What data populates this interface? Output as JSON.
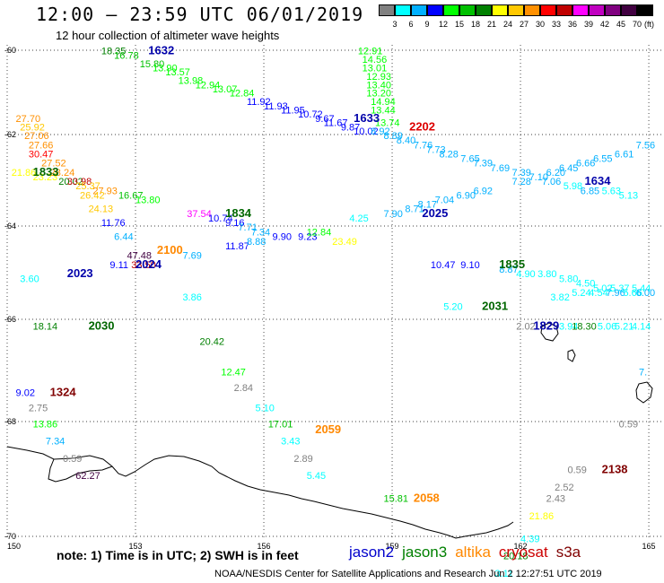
{
  "header": {
    "title": "12:00 — 23:59 UTC 06/01/2019",
    "subtitle": "12 hour collection of altimeter wave heights"
  },
  "colorbar": {
    "unit": "(ft)",
    "colors": [
      "#808080",
      "#00ffff",
      "#00b0ff",
      "#0000ff",
      "#00ff00",
      "#00c000",
      "#008000",
      "#ffff00",
      "#ffc800",
      "#ff9000",
      "#ff0000",
      "#c00000",
      "#ff00ff",
      "#c000c0",
      "#800080",
      "#400040",
      "#000000"
    ],
    "ticks": [
      "3",
      "6",
      "9",
      "12",
      "15",
      "18",
      "21",
      "24",
      "27",
      "30",
      "33",
      "36",
      "39",
      "42",
      "45",
      "70"
    ]
  },
  "axes": {
    "lat_labels": [
      "-60",
      "-62",
      "-64",
      "-66",
      "-68",
      "-70"
    ],
    "lon_labels": [
      "150",
      "153",
      "156",
      "159",
      "162",
      "165"
    ]
  },
  "note": "note: 1) Time is in UTC; 2) SWH is in feet",
  "legend": [
    {
      "name": "jason2",
      "color": "#0000cc"
    },
    {
      "name": "jason3",
      "color": "#008000"
    },
    {
      "name": "altika",
      "color": "#ff8800"
    },
    {
      "name": "cryosat",
      "color": "#cc0000"
    },
    {
      "name": "s3a",
      "color": "#800000"
    }
  ],
  "credit": "NOAA/NESDIS Center for Satellite Applications and Research   Jun  2 12:27:51 UTC 2019",
  "pass_times": [
    {
      "text": "1632",
      "lon": 153.3,
      "lat": -60.1,
      "color": "#0000aa"
    },
    {
      "text": "1633",
      "lon": 158.1,
      "lat": -61.7,
      "color": "#0000aa"
    },
    {
      "text": "2202",
      "lon": 159.4,
      "lat": -61.9,
      "color": "#dd0000"
    },
    {
      "text": "1833",
      "lon": 150.6,
      "lat": -62.9,
      "color": "#006600"
    },
    {
      "text": "1834",
      "lon": 155.1,
      "lat": -63.8,
      "color": "#006600"
    },
    {
      "text": "2025",
      "lon": 159.7,
      "lat": -63.8,
      "color": "#0000aa"
    },
    {
      "text": "1634",
      "lon": 163.5,
      "lat": -63.1,
      "color": "#0000aa"
    },
    {
      "text": "2100",
      "lon": 153.5,
      "lat": -64.6,
      "color": "#ff8800"
    },
    {
      "text": "2024",
      "lon": 153.0,
      "lat": -64.9,
      "color": "#0000aa"
    },
    {
      "text": "2023",
      "lon": 151.4,
      "lat": -65.1,
      "color": "#0000aa"
    },
    {
      "text": "1835",
      "lon": 161.5,
      "lat": -64.9,
      "color": "#006600"
    },
    {
      "text": "2031",
      "lon": 161.1,
      "lat": -65.8,
      "color": "#006600"
    },
    {
      "text": "2030",
      "lon": 151.9,
      "lat": -66.2,
      "color": "#006600"
    },
    {
      "text": "1829",
      "lon": 162.3,
      "lat": -66.2,
      "color": "#0000aa"
    },
    {
      "text": "1324",
      "lon": 151.0,
      "lat": -67.5,
      "color": "#800000"
    },
    {
      "text": "2059",
      "lon": 157.2,
      "lat": -68.2,
      "color": "#ff8800"
    },
    {
      "text": "2138",
      "lon": 163.9,
      "lat": -68.9,
      "color": "#800000"
    },
    {
      "text": "2058",
      "lon": 159.5,
      "lat": -69.4,
      "color": "#ff8800"
    }
  ],
  "observations": [
    {
      "v": "18.35",
      "lon": 152.2,
      "lat": -60.1
    },
    {
      "v": "16.78",
      "lon": 152.5,
      "lat": -60.2
    },
    {
      "v": "15.80",
      "lon": 153.1,
      "lat": -60.4
    },
    {
      "v": "13.90",
      "lon": 153.4,
      "lat": -60.5
    },
    {
      "v": "13.57",
      "lon": 153.7,
      "lat": -60.6
    },
    {
      "v": "13.98",
      "lon": 154.0,
      "lat": -60.8
    },
    {
      "v": "12.94",
      "lon": 154.4,
      "lat": -60.9
    },
    {
      "v": "13.07",
      "lon": 154.8,
      "lat": -61.0
    },
    {
      "v": "12.84",
      "lon": 155.2,
      "lat": -61.1
    },
    {
      "v": "11.92",
      "lon": 155.6,
      "lat": -61.3
    },
    {
      "v": "11.93",
      "lon": 156.0,
      "lat": -61.4
    },
    {
      "v": "11.95",
      "lon": 156.4,
      "lat": -61.5
    },
    {
      "v": "10.72",
      "lon": 156.8,
      "lat": -61.6
    },
    {
      "v": "9.67",
      "lon": 157.2,
      "lat": -61.7
    },
    {
      "v": "11.67",
      "lon": 157.4,
      "lat": -61.8
    },
    {
      "v": "9.87",
      "lon": 157.8,
      "lat": -61.9
    },
    {
      "v": "10.02",
      "lon": 158.1,
      "lat": -62.0
    },
    {
      "v": "12.91",
      "lon": 158.2,
      "lat": -60.1
    },
    {
      "v": "14.56",
      "lon": 158.3,
      "lat": -60.3
    },
    {
      "v": "13.01",
      "lon": 158.3,
      "lat": -60.5
    },
    {
      "v": "12.93",
      "lon": 158.4,
      "lat": -60.7
    },
    {
      "v": "13.40",
      "lon": 158.4,
      "lat": -60.9
    },
    {
      "v": "13.20",
      "lon": 158.4,
      "lat": -61.1
    },
    {
      "v": "14.94",
      "lon": 158.5,
      "lat": -61.3
    },
    {
      "v": "13.44",
      "lon": 158.5,
      "lat": -61.5
    },
    {
      "v": "13.74",
      "lon": 158.6,
      "lat": -61.8
    },
    {
      "v": "8.92",
      "lon": 158.5,
      "lat": -62.0
    },
    {
      "v": "8.89",
      "lon": 158.8,
      "lat": -62.1
    },
    {
      "v": "8.40",
      "lon": 159.1,
      "lat": -62.2
    },
    {
      "v": "7.76",
      "lon": 159.5,
      "lat": -62.3
    },
    {
      "v": "7.73",
      "lon": 159.8,
      "lat": -62.4
    },
    {
      "v": "8.28",
      "lon": 160.1,
      "lat": -62.5
    },
    {
      "v": "7.65",
      "lon": 160.6,
      "lat": -62.6
    },
    {
      "v": "7.39",
      "lon": 160.9,
      "lat": -62.7
    },
    {
      "v": "7.69",
      "lon": 161.3,
      "lat": -62.8
    },
    {
      "v": "7.39",
      "lon": 161.8,
      "lat": -62.9
    },
    {
      "v": "7.10",
      "lon": 162.2,
      "lat": -63.0
    },
    {
      "v": "6.20",
      "lon": 162.6,
      "lat": -62.9
    },
    {
      "v": "6.45",
      "lon": 162.9,
      "lat": -62.8
    },
    {
      "v": "6.66",
      "lon": 163.3,
      "lat": -62.7
    },
    {
      "v": "6.55",
      "lon": 163.7,
      "lat": -62.6
    },
    {
      "v": "6.61",
      "lon": 164.2,
      "lat": -62.5
    },
    {
      "v": "7.56",
      "lon": 164.7,
      "lat": -62.3
    },
    {
      "v": "7.28",
      "lon": 161.8,
      "lat": -63.1
    },
    {
      "v": "7.06",
      "lon": 162.5,
      "lat": -63.1
    },
    {
      "v": "5.98",
      "lon": 163.0,
      "lat": -63.2
    },
    {
      "v": "6.85",
      "lon": 163.4,
      "lat": -63.3
    },
    {
      "v": "5.63",
      "lon": 163.9,
      "lat": -63.3
    },
    {
      "v": "5.13",
      "lon": 164.3,
      "lat": -63.4
    },
    {
      "v": "6.92",
      "lon": 160.9,
      "lat": -63.3
    },
    {
      "v": "6.90",
      "lon": 160.5,
      "lat": -63.4
    },
    {
      "v": "7.04",
      "lon": 160.0,
      "lat": -63.5
    },
    {
      "v": "8.17",
      "lon": 159.6,
      "lat": -63.6
    },
    {
      "v": "8.71",
      "lon": 159.3,
      "lat": -63.7
    },
    {
      "v": "7.90",
      "lon": 158.8,
      "lat": -63.8
    },
    {
      "v": "4.25",
      "lon": 158.0,
      "lat": -63.9
    },
    {
      "v": "27.70",
      "lon": 150.2,
      "lat": -61.7
    },
    {
      "v": "25.92",
      "lon": 150.3,
      "lat": -61.9
    },
    {
      "v": "27.06",
      "lon": 150.4,
      "lat": -62.1
    },
    {
      "v": "27.66",
      "lon": 150.5,
      "lat": -62.3
    },
    {
      "v": "30.47",
      "lon": 150.5,
      "lat": -62.5
    },
    {
      "v": "27.52",
      "lon": 150.8,
      "lat": -62.7
    },
    {
      "v": "21.86",
      "lon": 150.1,
      "lat": -62.9
    },
    {
      "v": "28.24",
      "lon": 151.0,
      "lat": -62.9
    },
    {
      "v": "23.23",
      "lon": 150.6,
      "lat": -63.0
    },
    {
      "v": "20.02",
      "lon": 151.2,
      "lat": -63.1
    },
    {
      "v": "33.98",
      "lon": 151.4,
      "lat": -63.1
    },
    {
      "v": "25.37",
      "lon": 151.6,
      "lat": -63.2
    },
    {
      "v": "27.93",
      "lon": 152.0,
      "lat": -63.3
    },
    {
      "v": "16.67",
      "lon": 152.6,
      "lat": -63.4
    },
    {
      "v": "13.80",
      "lon": 153.0,
      "lat": -63.5
    },
    {
      "v": "26.42",
      "lon": 151.7,
      "lat": -63.4
    },
    {
      "v": "24.13",
      "lon": 151.9,
      "lat": -63.7
    },
    {
      "v": "11.76",
      "lon": 152.2,
      "lat": -64.0
    },
    {
      "v": "6.44",
      "lon": 152.5,
      "lat": -64.3
    },
    {
      "v": "37.54",
      "lon": 154.2,
      "lat": -63.8
    },
    {
      "v": "10.74",
      "lon": 154.7,
      "lat": -63.9
    },
    {
      "v": "9.16",
      "lon": 155.1,
      "lat": -64.0
    },
    {
      "v": "7.71",
      "lon": 155.4,
      "lat": -64.1
    },
    {
      "v": "7.34",
      "lon": 155.7,
      "lat": -64.2
    },
    {
      "v": "9.90",
      "lon": 156.2,
      "lat": -64.3
    },
    {
      "v": "9.23",
      "lon": 156.8,
      "lat": -64.3
    },
    {
      "v": "12.84",
      "lon": 157.0,
      "lat": -64.2
    },
    {
      "v": "23.49",
      "lon": 157.6,
      "lat": -64.4
    },
    {
      "v": "11.87",
      "lon": 155.1,
      "lat": -64.5
    },
    {
      "v": "8.88",
      "lon": 155.6,
      "lat": -64.4
    },
    {
      "v": "7.69",
      "lon": 154.1,
      "lat": -64.7
    },
    {
      "v": "47.48",
      "lon": 152.8,
      "lat": -64.7
    },
    {
      "v": "33.50",
      "lon": 152.9,
      "lat": -64.9
    },
    {
      "v": "9.11",
      "lon": 152.4,
      "lat": -64.9
    },
    {
      "v": "3.60",
      "lon": 150.3,
      "lat": -65.2
    },
    {
      "v": "3.86",
      "lon": 154.1,
      "lat": -65.6
    },
    {
      "v": "10.47",
      "lon": 159.9,
      "lat": -64.9
    },
    {
      "v": "9.10",
      "lon": 160.6,
      "lat": -64.9
    },
    {
      "v": "8.87",
      "lon": 161.5,
      "lat": -65.0
    },
    {
      "v": "4.90",
      "lon": 161.9,
      "lat": -65.1
    },
    {
      "v": "3.80",
      "lon": 162.4,
      "lat": -65.1
    },
    {
      "v": "5.80",
      "lon": 162.9,
      "lat": -65.2
    },
    {
      "v": "4.50",
      "lon": 163.3,
      "lat": -65.3
    },
    {
      "v": "5.02",
      "lon": 163.7,
      "lat": -65.4
    },
    {
      "v": "5.37",
      "lon": 164.1,
      "lat": -65.4
    },
    {
      "v": "5.44",
      "lon": 164.6,
      "lat": -65.4
    },
    {
      "v": "3.82",
      "lon": 162.7,
      "lat": -65.6
    },
    {
      "v": "5.24",
      "lon": 163.2,
      "lat": -65.5
    },
    {
      "v": "4.54",
      "lon": 163.6,
      "lat": -65.5
    },
    {
      "v": "7.96",
      "lon": 164.0,
      "lat": -65.5
    },
    {
      "v": "5.66",
      "lon": 164.4,
      "lat": -65.5
    },
    {
      "v": "6.00",
      "lon": 164.7,
      "lat": -65.5
    },
    {
      "v": "5.20",
      "lon": 160.2,
      "lat": -65.8
    },
    {
      "v": "2.02",
      "lon": 161.9,
      "lat": -66.2
    },
    {
      "v": "3.94",
      "lon": 162.9,
      "lat": -66.2
    },
    {
      "v": "18.30",
      "lon": 163.2,
      "lat": -66.2
    },
    {
      "v": "5.06",
      "lon": 163.8,
      "lat": -66.2
    },
    {
      "v": "5.21",
      "lon": 164.2,
      "lat": -66.2
    },
    {
      "v": "4.14",
      "lon": 164.6,
      "lat": -66.2
    },
    {
      "v": "7.",
      "lon": 164.85,
      "lat": -67.1
    },
    {
      "v": "18.14",
      "lon": 150.6,
      "lat": -66.2
    },
    {
      "v": "20.42",
      "lon": 154.5,
      "lat": -66.5
    },
    {
      "v": "12.47",
      "lon": 155.0,
      "lat": -67.1
    },
    {
      "v": "2.84",
      "lon": 155.3,
      "lat": -67.4
    },
    {
      "v": "5.10",
      "lon": 155.8,
      "lat": -67.8
    },
    {
      "v": "17.01",
      "lon": 156.1,
      "lat": -68.1
    },
    {
      "v": "3.43",
      "lon": 156.4,
      "lat": -68.4
    },
    {
      "v": "2.89",
      "lon": 156.7,
      "lat": -68.7
    },
    {
      "v": "5.45",
      "lon": 157.0,
      "lat": -69.0
    },
    {
      "v": "9.02",
      "lon": 150.2,
      "lat": -67.5
    },
    {
      "v": "2.75",
      "lon": 150.5,
      "lat": -67.8
    },
    {
      "v": "13.86",
      "lon": 150.6,
      "lat": -68.1
    },
    {
      "v": "7.34",
      "lon": 150.9,
      "lat": -68.4
    },
    {
      "v": "0.59",
      "lon": 151.3,
      "lat": -68.7
    },
    {
      "v": "62.27",
      "lon": 151.6,
      "lat": -69.0
    },
    {
      "v": "0.59",
      "lon": 164.3,
      "lat": -68.1
    },
    {
      "v": "0.59",
      "lon": 163.1,
      "lat": -68.9
    },
    {
      "v": "2.52",
      "lon": 162.8,
      "lat": -69.2
    },
    {
      "v": "2.43",
      "lon": 162.6,
      "lat": -69.4
    },
    {
      "v": "21.86",
      "lon": 162.2,
      "lat": -69.7
    },
    {
      "v": "4.39",
      "lon": 162.0,
      "lat": -70.1
    },
    {
      "v": "20.18",
      "lon": 161.6,
      "lat": -70.4
    },
    {
      "v": "3.11",
      "lon": 161.4,
      "lat": -70.7
    },
    {
      "v": "1.48",
      "lon": 161.1,
      "lat": -70.95
    },
    {
      "v": "15.81",
      "lon": 158.8,
      "lat": -69.4
    }
  ]
}
